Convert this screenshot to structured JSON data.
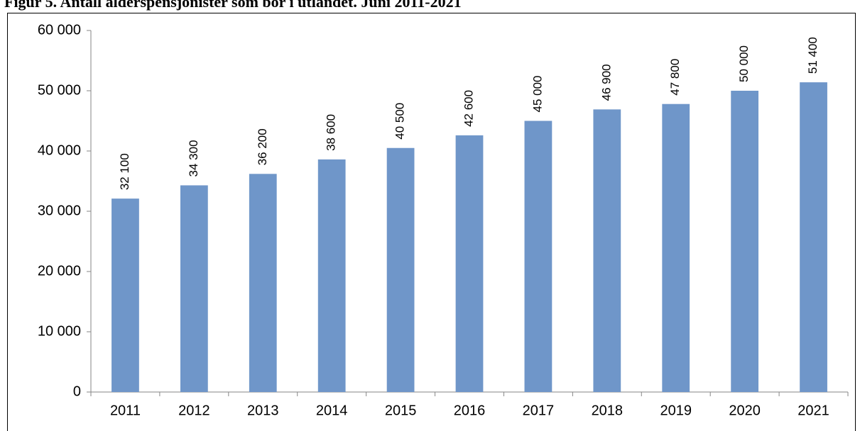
{
  "chart_data": {
    "type": "bar",
    "title": "Figur 5. Antall alderspensjonister som bor i utlandet. Juni 2011-2021",
    "categories": [
      "2011",
      "2012",
      "2013",
      "2014",
      "2015",
      "2016",
      "2017",
      "2018",
      "2019",
      "2020",
      "2021"
    ],
    "values": [
      32100,
      34300,
      36200,
      38600,
      40500,
      42600,
      45000,
      46900,
      47800,
      50000,
      51400
    ],
    "value_labels": [
      "32 100",
      "34 300",
      "36 200",
      "38 600",
      "40 500",
      "42 600",
      "45 000",
      "46 900",
      "47 800",
      "50 000",
      "51 400"
    ],
    "color": "#6f96c9",
    "ylim": [
      0,
      60000
    ],
    "yticks": [
      0,
      {
        "value": 10000,
        "label": "10 000"
      },
      {
        "value": 20000,
        "label": "20 000"
      },
      {
        "value": 30000,
        "label": "30 000"
      },
      {
        "value": 40000,
        "label": "40 000"
      },
      {
        "value": 50000,
        "label": "50 000"
      },
      {
        "value": 60000,
        "label": "60 000"
      }
    ],
    "grid": false
  }
}
